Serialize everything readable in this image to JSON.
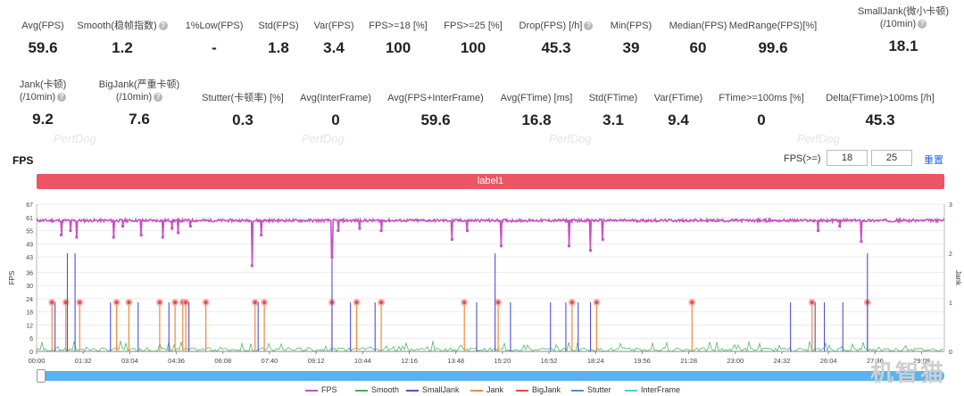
{
  "metrics_row1": [
    {
      "label": "Avg(FPS)",
      "value": "59.6",
      "help": false
    },
    {
      "label": "Smooth(稳帧指数)",
      "value": "1.2",
      "help": true
    },
    {
      "label": "1%Low(FPS)",
      "value": "-",
      "help": false
    },
    {
      "label": "Std(FPS)",
      "value": "1.8",
      "help": false
    },
    {
      "label": "Var(FPS)",
      "value": "3.4",
      "help": false
    },
    {
      "label": "FPS>=18 [%]",
      "value": "100",
      "help": false
    },
    {
      "label": "FPS>=25 [%]",
      "value": "100",
      "help": false
    },
    {
      "label": "Drop(FPS) [/h]",
      "value": "45.3",
      "help": true
    },
    {
      "label": "Min(FPS)",
      "value": "39",
      "help": false
    },
    {
      "label": "Median(FPS)",
      "value": "60",
      "help": false
    },
    {
      "label": "MedRange(FPS)[%]",
      "value": "99.6",
      "help": false
    },
    {
      "label": "SmallJank(微小卡顿)",
      "label2": "(/10min)",
      "value": "18.1",
      "help": true
    }
  ],
  "metrics_row2": [
    {
      "label": "Jank(卡顿)",
      "label2": "(/10min)",
      "value": "9.2",
      "help": true
    },
    {
      "label": "BigJank(严重卡顿)",
      "label2": "(/10min)",
      "value": "7.6",
      "help": true
    },
    {
      "label": "Stutter(卡顿率) [%]",
      "value": "0.3",
      "help": false
    },
    {
      "label": "Avg(InterFrame)",
      "value": "0",
      "help": false
    },
    {
      "label": "Avg(FPS+InterFrame)",
      "value": "59.6",
      "help": false
    },
    {
      "label": "Avg(FTime) [ms]",
      "value": "16.8",
      "help": false
    },
    {
      "label": "Std(FTime)",
      "value": "3.1",
      "help": false
    },
    {
      "label": "Var(FTime)",
      "value": "9.4",
      "help": false
    },
    {
      "label": "FTime>=100ms [%]",
      "value": "0",
      "help": false
    },
    {
      "label": "Delta(FTime)>100ms [/h]",
      "value": "45.3",
      "help": false
    }
  ],
  "watermark": "PerfDog",
  "section_title": "FPS",
  "threshold": {
    "label": "FPS(>=)",
    "low": "18",
    "high": "25",
    "reset_label": "重置"
  },
  "label_bar": "label1",
  "brand": "机智猫",
  "colors": {
    "fps": "#c84fc6",
    "smooth": "#3fb35a",
    "smalljank": "#4f4fd6",
    "jank": "#f08a3c",
    "bigjank": "#e84a4a",
    "stutter": "#4a8fd6",
    "interframe": "#3fd6d0",
    "labelbar": "#ec5564",
    "scroll": "#5ab3ec"
  },
  "chart_data": {
    "type": "line",
    "xlabel": "",
    "ylabel": "FPS",
    "y2label": "Jank",
    "ylim": [
      0,
      67
    ],
    "y2lim": [
      0,
      3
    ],
    "yticks": [
      "0",
      "6",
      "12",
      "18",
      "24",
      "30",
      "36",
      "43",
      "49",
      "55",
      "61",
      "67"
    ],
    "y2ticks": [
      "0",
      "1",
      "2",
      "3"
    ],
    "xticks": [
      "00:00",
      "01:32",
      "03:04",
      "04:36",
      "06:08",
      "07:40",
      "09:12",
      "10:44",
      "12:16",
      "13:48",
      "15:20",
      "16:52",
      "18:24",
      "19:56",
      "21:28",
      "23:00",
      "24:32",
      "26:04",
      "27:36",
      "29:08"
    ],
    "x_minutes_max": 29.5,
    "fps_baseline": 59.6,
    "fps_dips": [
      {
        "t": 0.8,
        "v": 53
      },
      {
        "t": 1.1,
        "v": 55
      },
      {
        "t": 1.3,
        "v": 52
      },
      {
        "t": 2.5,
        "v": 52
      },
      {
        "t": 2.8,
        "v": 57
      },
      {
        "t": 3.4,
        "v": 53
      },
      {
        "t": 4.1,
        "v": 52
      },
      {
        "t": 4.4,
        "v": 56
      },
      {
        "t": 4.6,
        "v": 54
      },
      {
        "t": 5.0,
        "v": 57
      },
      {
        "t": 7.0,
        "v": 39
      },
      {
        "t": 7.3,
        "v": 53
      },
      {
        "t": 9.6,
        "v": 43
      },
      {
        "t": 9.8,
        "v": 55
      },
      {
        "t": 10.5,
        "v": 56
      },
      {
        "t": 11.2,
        "v": 55
      },
      {
        "t": 13.5,
        "v": 51
      },
      {
        "t": 14.0,
        "v": 55
      },
      {
        "t": 15.1,
        "v": 48
      },
      {
        "t": 17.3,
        "v": 48
      },
      {
        "t": 18.0,
        "v": 46
      },
      {
        "t": 18.4,
        "v": 51
      },
      {
        "t": 25.4,
        "v": 55
      },
      {
        "t": 26.1,
        "v": 57
      },
      {
        "t": 26.8,
        "v": 50
      }
    ],
    "bigjank_times": [
      0.5,
      0.95,
      1.4,
      2.6,
      3.0,
      4.0,
      4.5,
      4.75,
      4.85,
      5.5,
      7.1,
      7.4,
      9.6,
      10.4,
      11.2,
      13.9,
      15.0,
      17.4,
      18.2,
      21.3,
      25.2,
      27.0
    ],
    "smalljank": [
      {
        "t": 0.6,
        "v": 1
      },
      {
        "t": 1.0,
        "v": 2
      },
      {
        "t": 1.25,
        "v": 2
      },
      {
        "t": 2.4,
        "v": 1
      },
      {
        "t": 3.3,
        "v": 1
      },
      {
        "t": 4.3,
        "v": 1
      },
      {
        "t": 4.95,
        "v": 1
      },
      {
        "t": 7.2,
        "v": 1
      },
      {
        "t": 9.6,
        "v": 2
      },
      {
        "t": 10.2,
        "v": 1
      },
      {
        "t": 11.0,
        "v": 1
      },
      {
        "t": 14.3,
        "v": 1
      },
      {
        "t": 14.9,
        "v": 2
      },
      {
        "t": 15.4,
        "v": 1
      },
      {
        "t": 16.7,
        "v": 1
      },
      {
        "t": 17.2,
        "v": 1
      },
      {
        "t": 17.6,
        "v": 1
      },
      {
        "t": 18.0,
        "v": 1
      },
      {
        "t": 24.5,
        "v": 1
      },
      {
        "t": 25.3,
        "v": 1
      },
      {
        "t": 25.6,
        "v": 1
      },
      {
        "t": 26.2,
        "v": 1
      },
      {
        "t": 27.0,
        "v": 2
      }
    ],
    "legend": [
      "FPS",
      "Smooth",
      "SmallJank",
      "Jank",
      "BigJank",
      "Stutter",
      "InterFrame"
    ]
  }
}
